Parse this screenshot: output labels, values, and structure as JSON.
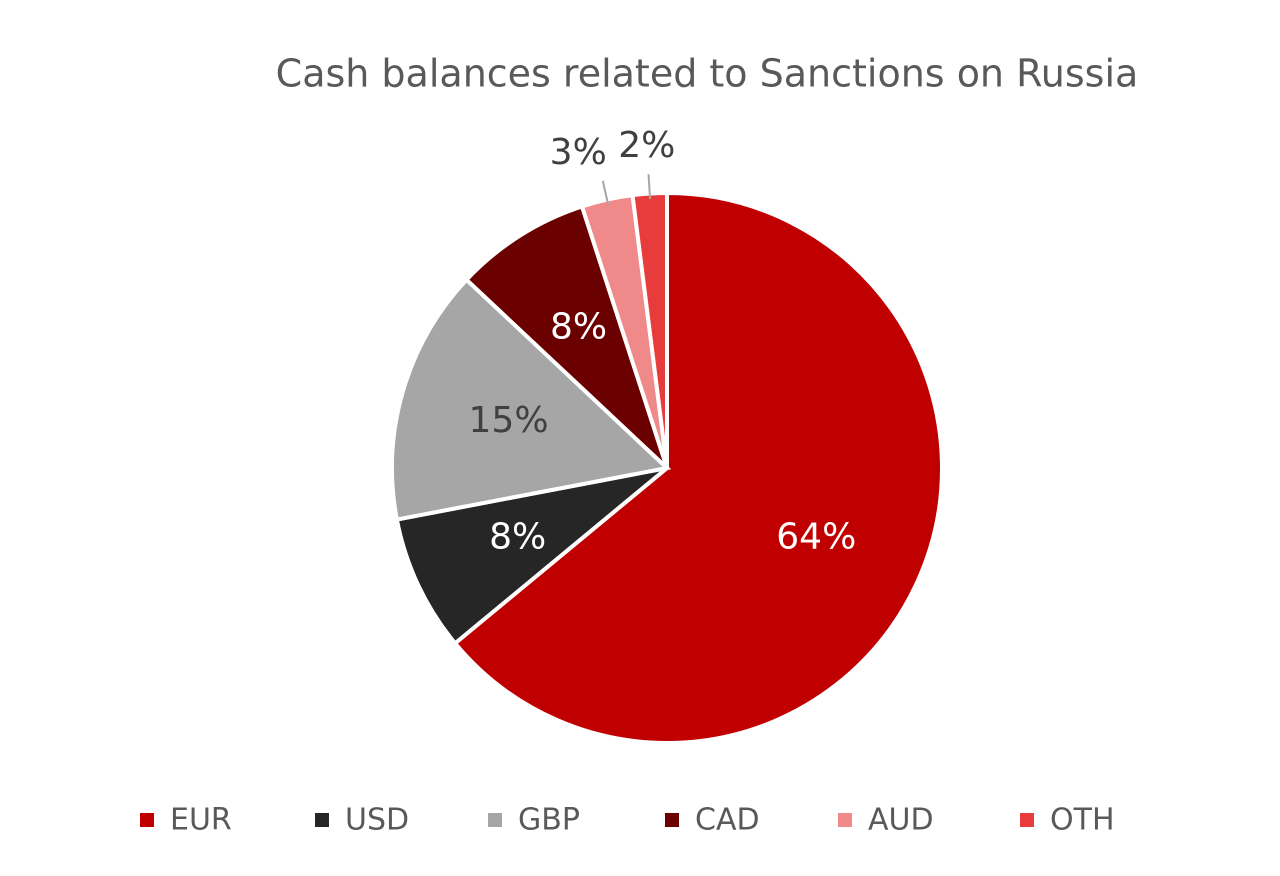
{
  "chart_data": {
    "type": "pie",
    "title": "Cash balances related to Sanctions on Russia",
    "categories": [
      "EUR",
      "USD",
      "GBP",
      "CAD",
      "AUD",
      "OTH"
    ],
    "values": [
      64,
      8,
      15,
      8,
      3,
      2
    ],
    "value_labels": [
      "64%",
      "8%",
      "15%",
      "8%",
      "3%",
      "2%"
    ],
    "colors": [
      "#c00000",
      "#262626",
      "#a6a6a6",
      "#6b0000",
      "#f08a8a",
      "#e83c3c"
    ],
    "legend": "bottom"
  }
}
